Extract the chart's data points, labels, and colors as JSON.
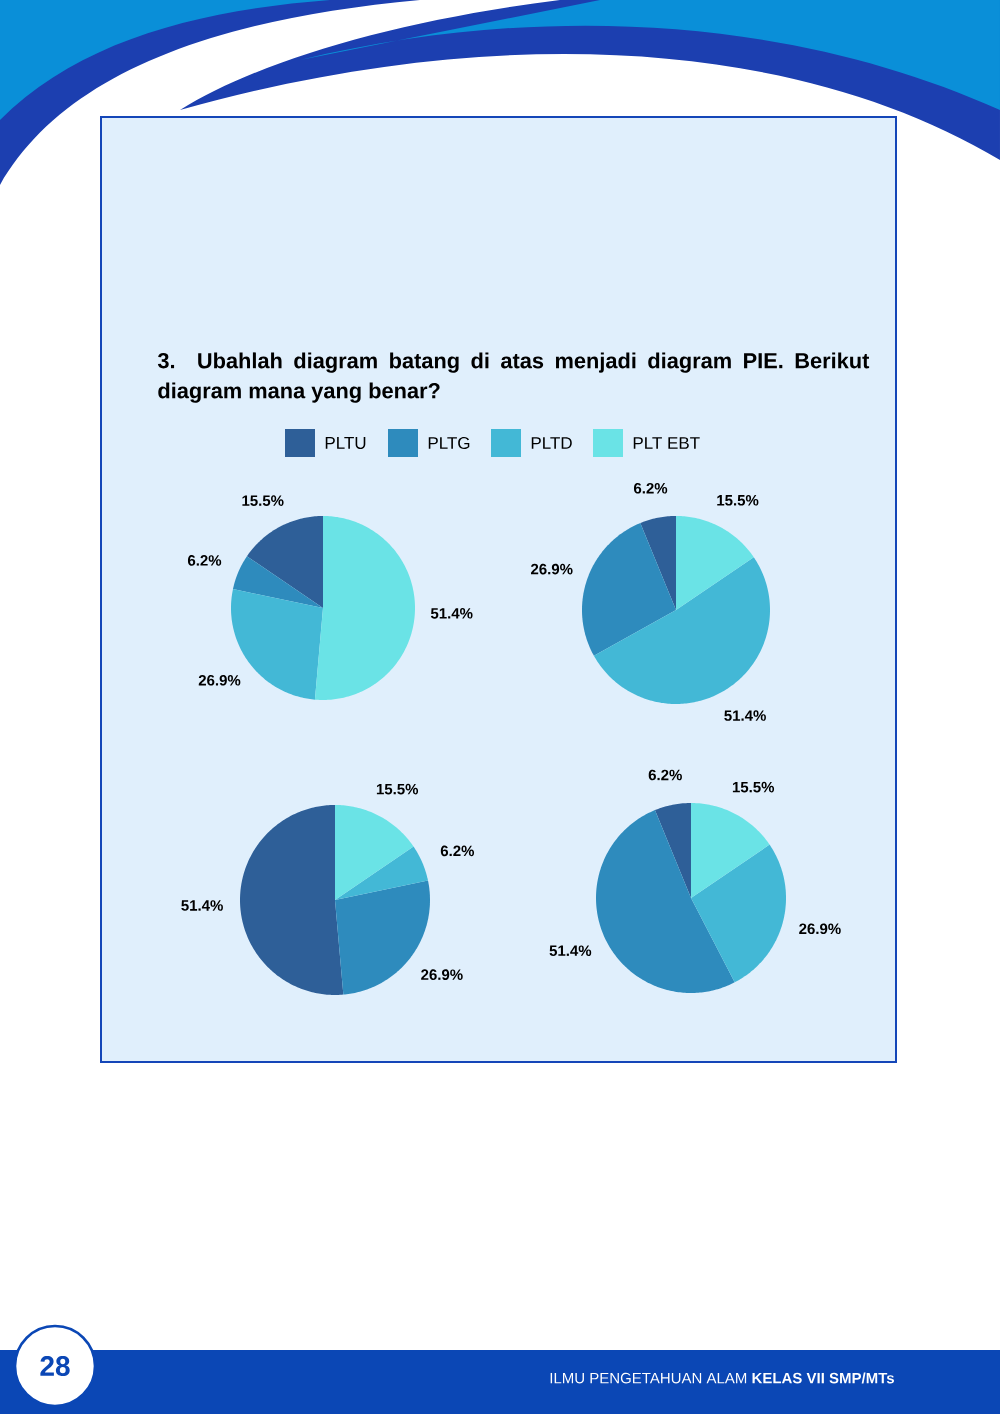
{
  "chart_data": [
    {
      "type": "pie",
      "title": "3. Ubahlah diagram batang di atas menjadi diagram PIE. Berikut diagram mana yang benar?",
      "categories": [
        "PLTU",
        "PLTG",
        "PLTD",
        "PLT EBT"
      ],
      "values": [
        15.5,
        6.2,
        26.9,
        51.4
      ],
      "value_labels": [
        "15.5%",
        "6.2%",
        "26.9%",
        "51.4%"
      ],
      "colors": [
        "#2e5f98",
        "#2e8bbd",
        "#43b8d6",
        "#6ae3e6"
      ],
      "legend": "top",
      "annotations": [
        "ILMU PENGETAHUAN ALAM **KELAS VII SMP/MTs**",
        "28"
      ]
    },
    {
      "type": "pie",
      "categories": [
        null,
        null,
        null,
        null
      ],
      "values": [
        6.2,
        26.9,
        51.4,
        15.5
      ],
      "value_labels": [
        "6.2%",
        "26.9%",
        "51.4%",
        "15.5%"
      ],
      "colors": [
        "#2e5f98",
        "#2e8bbd",
        "#43b8d6",
        "#6ae3e6"
      ]
    },
    {
      "type": "pie",
      "categories": [
        null,
        null,
        null,
        null
      ],
      "values": [
        51.4,
        26.9,
        6.2,
        15.5
      ],
      "value_labels": [
        "51.4%",
        "26.9%",
        "6.2%",
        "15.5%"
      ],
      "colors": [
        "#2e5f98",
        "#2e8bbd",
        "#43b8d6",
        "#6ae3e6"
      ]
    },
    {
      "type": "pie",
      "categories": [
        null,
        null,
        null,
        null
      ],
      "values": [
        6.2,
        51.4,
        26.9,
        15.5
      ],
      "value_labels": [
        "6.2%",
        "51.4%",
        "26.9%",
        "15.5%"
      ],
      "colors": [
        "#2e5f98",
        "#2e8bbd",
        "#43b8d6",
        "#6ae3e6"
      ]
    }
  ]
}
